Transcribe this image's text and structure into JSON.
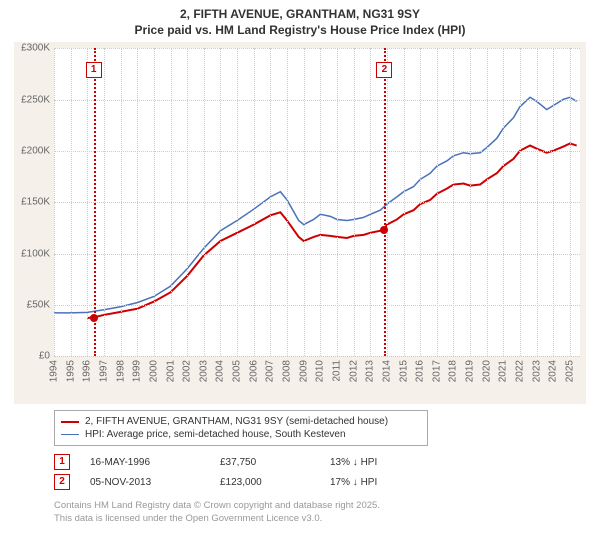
{
  "title_line1": "2, FIFTH AVENUE, GRANTHAM, NG31 9SY",
  "title_line2": "Price paid vs. HM Land Registry's House Price Index (HPI)",
  "chart": {
    "type": "line",
    "background_color": "#ffffff",
    "panel_color": "#f5f0ea",
    "grid_color": "#cccccc",
    "axis_text_color": "#666666",
    "label_fontsize": 10,
    "x_years": [
      1994,
      1995,
      1996,
      1997,
      1998,
      1999,
      2000,
      2001,
      2002,
      2003,
      2004,
      2005,
      2006,
      2007,
      2008,
      2009,
      2010,
      2011,
      2012,
      2013,
      2014,
      2015,
      2016,
      2017,
      2018,
      2019,
      2020,
      2021,
      2022,
      2023,
      2024,
      2025
    ],
    "xlim": [
      1994,
      2025.6
    ],
    "ylim": [
      0,
      300000
    ],
    "yticks": [
      0,
      50000,
      100000,
      150000,
      200000,
      250000,
      300000
    ],
    "ytick_labels": [
      "£0",
      "£50K",
      "£100K",
      "£150K",
      "£200K",
      "£250K",
      "£300K"
    ],
    "series": [
      {
        "name": "price_paid",
        "label": "2, FIFTH AVENUE, GRANTHAM, NG31 9SY (semi-detached house)",
        "color": "#cc0000",
        "line_width": 2,
        "points": [
          [
            1996.0,
            37000
          ],
          [
            1996.4,
            37750
          ],
          [
            1997.0,
            40000
          ],
          [
            1998.0,
            43000
          ],
          [
            1999.0,
            46000
          ],
          [
            2000.0,
            53000
          ],
          [
            2001.0,
            62000
          ],
          [
            2002.0,
            78000
          ],
          [
            2003.0,
            98000
          ],
          [
            2004.0,
            112000
          ],
          [
            2005.0,
            120000
          ],
          [
            2006.0,
            128000
          ],
          [
            2007.0,
            137000
          ],
          [
            2007.6,
            140000
          ],
          [
            2008.0,
            132000
          ],
          [
            2008.7,
            116000
          ],
          [
            2009.0,
            112000
          ],
          [
            2009.6,
            116000
          ],
          [
            2010.0,
            118000
          ],
          [
            2010.6,
            117000
          ],
          [
            2011.0,
            116000
          ],
          [
            2011.6,
            115000
          ],
          [
            2012.0,
            117000
          ],
          [
            2012.6,
            118000
          ],
          [
            2013.0,
            120000
          ],
          [
            2013.6,
            122000
          ],
          [
            2013.85,
            123000
          ],
          [
            2014.0,
            128000
          ],
          [
            2014.6,
            133000
          ],
          [
            2015.0,
            138000
          ],
          [
            2015.6,
            142000
          ],
          [
            2016.0,
            148000
          ],
          [
            2016.6,
            152000
          ],
          [
            2017.0,
            158000
          ],
          [
            2017.6,
            163000
          ],
          [
            2018.0,
            167000
          ],
          [
            2018.6,
            168000
          ],
          [
            2019.0,
            166000
          ],
          [
            2019.6,
            167000
          ],
          [
            2020.0,
            172000
          ],
          [
            2020.6,
            178000
          ],
          [
            2021.0,
            185000
          ],
          [
            2021.6,
            192000
          ],
          [
            2022.0,
            200000
          ],
          [
            2022.6,
            205000
          ],
          [
            2023.0,
            202000
          ],
          [
            2023.6,
            198000
          ],
          [
            2024.0,
            200000
          ],
          [
            2024.6,
            204000
          ],
          [
            2025.0,
            207000
          ],
          [
            2025.4,
            205000
          ]
        ]
      },
      {
        "name": "hpi",
        "label": "HPI: Average price, semi-detached house, South Kesteven",
        "color": "#4a72b8",
        "line_width": 1.5,
        "points": [
          [
            1994.0,
            42000
          ],
          [
            1995.0,
            42000
          ],
          [
            1996.0,
            42500
          ],
          [
            1997.0,
            45000
          ],
          [
            1998.0,
            48000
          ],
          [
            1999.0,
            52000
          ],
          [
            2000.0,
            58000
          ],
          [
            2001.0,
            68000
          ],
          [
            2002.0,
            85000
          ],
          [
            2003.0,
            105000
          ],
          [
            2004.0,
            122000
          ],
          [
            2005.0,
            132000
          ],
          [
            2006.0,
            143000
          ],
          [
            2007.0,
            155000
          ],
          [
            2007.6,
            160000
          ],
          [
            2008.0,
            152000
          ],
          [
            2008.7,
            132000
          ],
          [
            2009.0,
            128000
          ],
          [
            2009.6,
            133000
          ],
          [
            2010.0,
            138000
          ],
          [
            2010.6,
            136000
          ],
          [
            2011.0,
            133000
          ],
          [
            2011.6,
            132000
          ],
          [
            2012.0,
            133000
          ],
          [
            2012.6,
            135000
          ],
          [
            2013.0,
            138000
          ],
          [
            2013.6,
            142000
          ],
          [
            2014.0,
            148000
          ],
          [
            2014.6,
            155000
          ],
          [
            2015.0,
            160000
          ],
          [
            2015.6,
            165000
          ],
          [
            2016.0,
            172000
          ],
          [
            2016.6,
            178000
          ],
          [
            2017.0,
            185000
          ],
          [
            2017.6,
            190000
          ],
          [
            2018.0,
            195000
          ],
          [
            2018.6,
            198000
          ],
          [
            2019.0,
            197000
          ],
          [
            2019.6,
            198000
          ],
          [
            2020.0,
            203000
          ],
          [
            2020.6,
            212000
          ],
          [
            2021.0,
            222000
          ],
          [
            2021.6,
            232000
          ],
          [
            2022.0,
            243000
          ],
          [
            2022.6,
            252000
          ],
          [
            2023.0,
            248000
          ],
          [
            2023.6,
            240000
          ],
          [
            2024.0,
            244000
          ],
          [
            2024.6,
            250000
          ],
          [
            2025.0,
            252000
          ],
          [
            2025.4,
            248000
          ]
        ]
      }
    ],
    "events": [
      {
        "n": "1",
        "x": 1996.38,
        "date": "16-MAY-1996",
        "price": "£37,750",
        "delta": "13% ↓ HPI",
        "color": "#cc0000",
        "dot_y": 37750
      },
      {
        "n": "2",
        "x": 2013.85,
        "date": "05-NOV-2013",
        "price": "£123,000",
        "delta": "17% ↓ HPI",
        "color": "#cc0000",
        "dot_y": 123000
      }
    ]
  },
  "footnote_line1": "Contains HM Land Registry data © Crown copyright and database right 2025.",
  "footnote_line2": "This data is licensed under the Open Government Licence v3.0."
}
